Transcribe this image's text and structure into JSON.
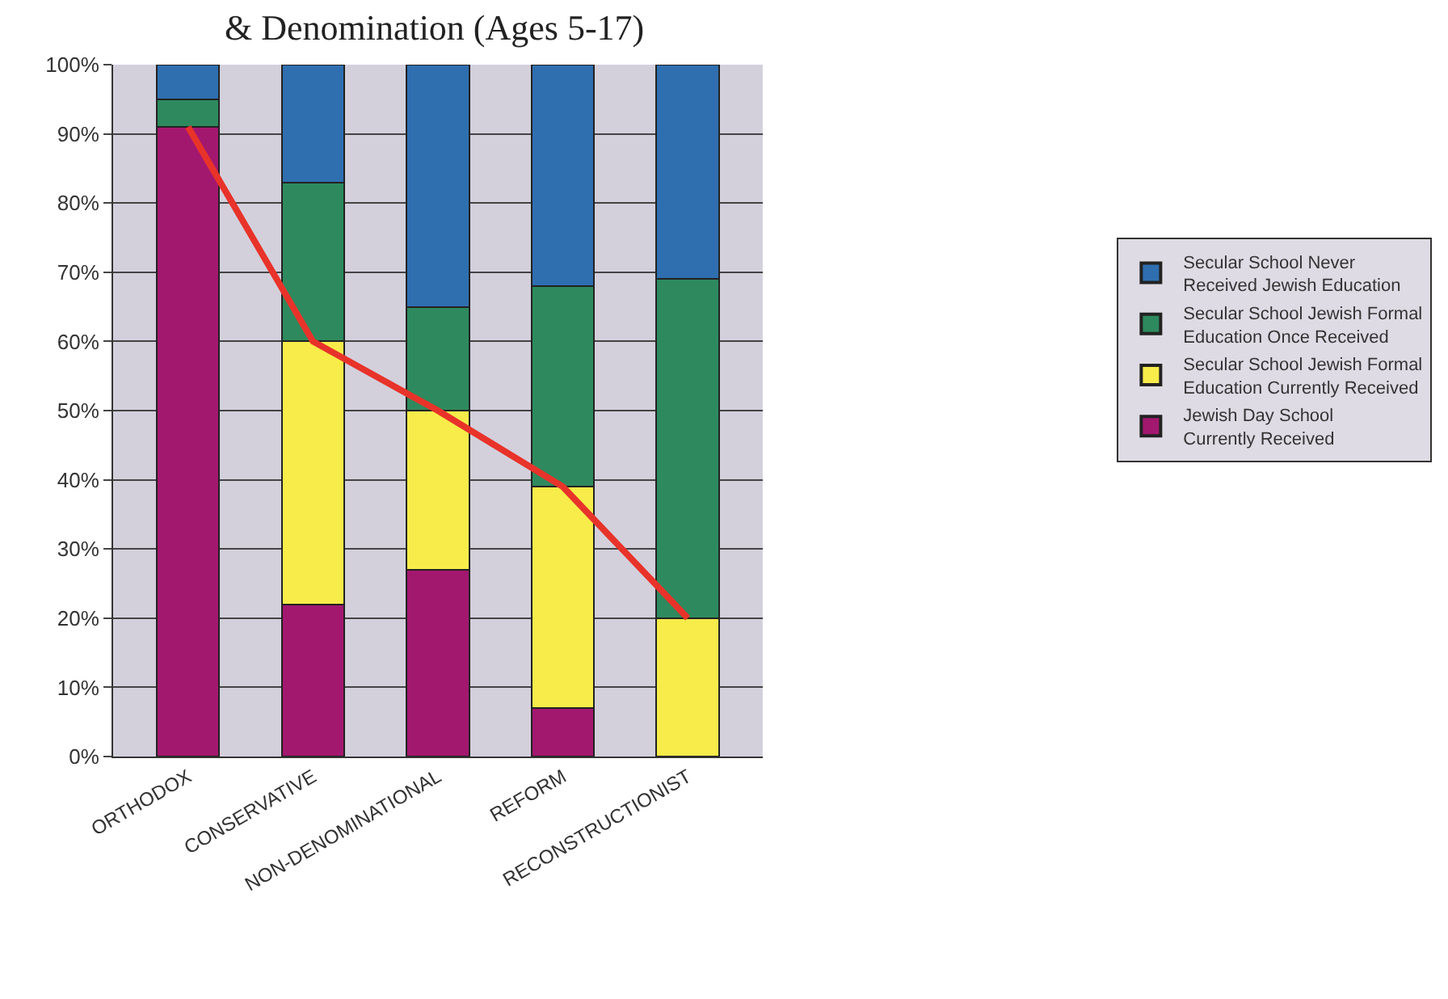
{
  "chart_data": {
    "type": "bar",
    "stacked": true,
    "title": "& Denomination (Ages 5-17)",
    "categories": [
      "ORTHODOX",
      "CONSERVATIVE",
      "NON-DENOMINATIONAL",
      "REFORM",
      "RECONSTRUCTIONIST"
    ],
    "series": [
      {
        "name": "Jewish Day School\nCurrently Received",
        "color": "#a3186f",
        "values": [
          91,
          22,
          27,
          7,
          0
        ]
      },
      {
        "name": "Secular School Jewish Formal\nEducation Currently Received",
        "color": "#f7ec4a",
        "values": [
          0,
          38,
          23,
          32,
          20
        ]
      },
      {
        "name": "Secular School Jewish Formal\nEducation Once Received",
        "color": "#2e8a5e",
        "values": [
          4,
          23,
          15,
          29,
          49
        ]
      },
      {
        "name": "Secular School Never\nReceived Jewish Education",
        "color": "#2f6fb0",
        "values": [
          5,
          17,
          35,
          32,
          31
        ]
      },
      {
        "type": "line",
        "color": "#e8332a",
        "values": [
          91,
          60,
          50,
          39,
          20
        ]
      }
    ],
    "ylim": [
      0,
      100
    ],
    "yticks": [
      {
        "value": 0,
        "label": "0%"
      },
      {
        "value": 10,
        "label": "10%"
      },
      {
        "value": 20,
        "label": "20%"
      },
      {
        "value": 30,
        "label": "30%"
      },
      {
        "value": 40,
        "label": "40%"
      },
      {
        "value": 50,
        "label": "50%"
      },
      {
        "value": 60,
        "label": "60%"
      },
      {
        "value": 70,
        "label": "70%"
      },
      {
        "value": 80,
        "label": "80%"
      },
      {
        "value": 90,
        "label": "90%"
      },
      {
        "value": 100,
        "label": "100%"
      }
    ],
    "grid": true,
    "legend": "right",
    "marker": "none"
  }
}
